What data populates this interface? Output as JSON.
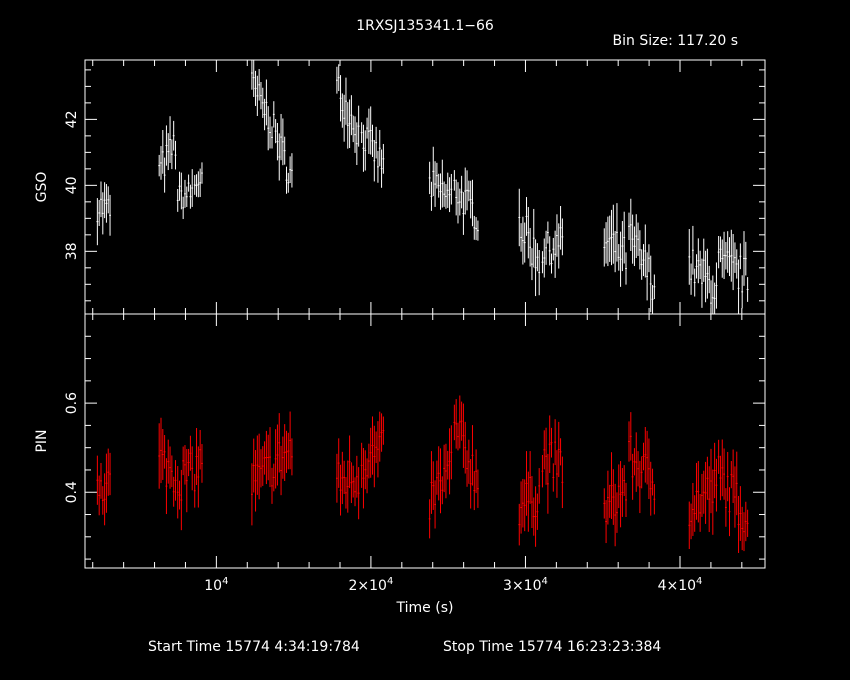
{
  "chart_data": {
    "type": "line",
    "title": "1RXSJ135341.1−66",
    "bin_size_label": "Bin Size:  117.20  s",
    "xlabel": "Time (s)",
    "xlim": [
      1500,
      45500
    ],
    "x_ticks": [
      {
        "value": 10000,
        "mantissa": "",
        "exp": "4"
      },
      {
        "value": 20000,
        "mantissa": "2×",
        "exp": "4"
      },
      {
        "value": 30000,
        "mantissa": "3×",
        "exp": "4"
      },
      {
        "value": 40000,
        "mantissa": "4×",
        "exp": "4"
      }
    ],
    "start_time": "Start Time 15774  4:34:19:784",
    "stop_time": "Stop Time 15774 16:23:23:384",
    "panels": [
      {
        "name": "GSO",
        "ylabel": "GSO",
        "ylim": [
          36.1,
          43.8
        ],
        "y_ticks": [
          38,
          40,
          42
        ],
        "color": "#ffffff",
        "segments": [
          {
            "x0": 2300,
            "x1": 3200,
            "v0": 39.4,
            "v1": 39.2,
            "jitter": 0.5
          },
          {
            "x0": 6300,
            "x1": 7400,
            "v0": 40.4,
            "v1": 41.3,
            "jitter": 0.5
          },
          {
            "x0": 7500,
            "x1": 8500,
            "v0": 39.6,
            "v1": 39.8,
            "jitter": 0.4
          },
          {
            "x0": 8600,
            "x1": 9100,
            "v0": 40.0,
            "v1": 40.3,
            "jitter": 0.4
          },
          {
            "x0": 12300,
            "x1": 13500,
            "v0": 43.0,
            "v1": 42.0,
            "jitter": 0.5
          },
          {
            "x0": 13600,
            "x1": 14900,
            "v0": 41.8,
            "v1": 40.2,
            "jitter": 0.5
          },
          {
            "x0": 17800,
            "x1": 19300,
            "v0": 43.0,
            "v1": 41.5,
            "jitter": 0.5
          },
          {
            "x0": 19400,
            "x1": 20900,
            "v0": 41.6,
            "v1": 40.5,
            "jitter": 0.5
          },
          {
            "x0": 23800,
            "x1": 25300,
            "v0": 40.0,
            "v1": 39.6,
            "jitter": 0.5
          },
          {
            "x0": 25400,
            "x1": 27000,
            "v0": 39.9,
            "v1": 39.0,
            "jitter": 0.5
          },
          {
            "x0": 29600,
            "x1": 31000,
            "v0": 38.9,
            "v1": 37.6,
            "jitter": 0.6
          },
          {
            "x0": 31100,
            "x1": 32500,
            "v0": 38.0,
            "v1": 38.3,
            "jitter": 0.5
          },
          {
            "x0": 35100,
            "x1": 36600,
            "v0": 38.3,
            "v1": 37.8,
            "jitter": 0.6
          },
          {
            "x0": 36700,
            "x1": 38400,
            "v0": 38.4,
            "v1": 37.0,
            "jitter": 0.6
          },
          {
            "x0": 40600,
            "x1": 42400,
            "v0": 37.6,
            "v1": 36.8,
            "jitter": 0.6
          },
          {
            "x0": 42500,
            "x1": 44400,
            "v0": 37.6,
            "v1": 37.2,
            "jitter": 0.6
          }
        ]
      },
      {
        "name": "PIN",
        "ylabel": "PIN",
        "ylim": [
          0.23,
          0.8
        ],
        "y_ticks": [
          0.4,
          0.6
        ],
        "color": "#ff0000",
        "segments": [
          {
            "x0": 2300,
            "x1": 3200,
            "v0": 0.43,
            "v1": 0.42,
            "jitter": 0.05
          },
          {
            "x0": 6300,
            "x1": 7400,
            "v0": 0.47,
            "v1": 0.44,
            "jitter": 0.05
          },
          {
            "x0": 7500,
            "x1": 8500,
            "v0": 0.43,
            "v1": 0.44,
            "jitter": 0.05
          },
          {
            "x0": 8600,
            "x1": 9100,
            "v0": 0.45,
            "v1": 0.47,
            "jitter": 0.05
          },
          {
            "x0": 12300,
            "x1": 13500,
            "v0": 0.42,
            "v1": 0.45,
            "jitter": 0.05
          },
          {
            "x0": 13600,
            "x1": 14900,
            "v0": 0.46,
            "v1": 0.5,
            "jitter": 0.05
          },
          {
            "x0": 17800,
            "x1": 19300,
            "v0": 0.42,
            "v1": 0.44,
            "jitter": 0.05
          },
          {
            "x0": 19400,
            "x1": 20900,
            "v0": 0.47,
            "v1": 0.49,
            "jitter": 0.05
          },
          {
            "x0": 23800,
            "x1": 25300,
            "v0": 0.38,
            "v1": 0.46,
            "jitter": 0.05
          },
          {
            "x0": 25400,
            "x1": 27000,
            "v0": 0.55,
            "v1": 0.42,
            "jitter": 0.05
          },
          {
            "x0": 29600,
            "x1": 31000,
            "v0": 0.37,
            "v1": 0.4,
            "jitter": 0.05
          },
          {
            "x0": 31100,
            "x1": 32500,
            "v0": 0.47,
            "v1": 0.46,
            "jitter": 0.05
          },
          {
            "x0": 35100,
            "x1": 36600,
            "v0": 0.35,
            "v1": 0.42,
            "jitter": 0.05
          },
          {
            "x0": 36700,
            "x1": 38400,
            "v0": 0.48,
            "v1": 0.42,
            "jitter": 0.05
          },
          {
            "x0": 40600,
            "x1": 42400,
            "v0": 0.37,
            "v1": 0.41,
            "jitter": 0.05
          },
          {
            "x0": 42500,
            "x1": 44400,
            "v0": 0.44,
            "v1": 0.34,
            "jitter": 0.05
          }
        ]
      }
    ]
  }
}
